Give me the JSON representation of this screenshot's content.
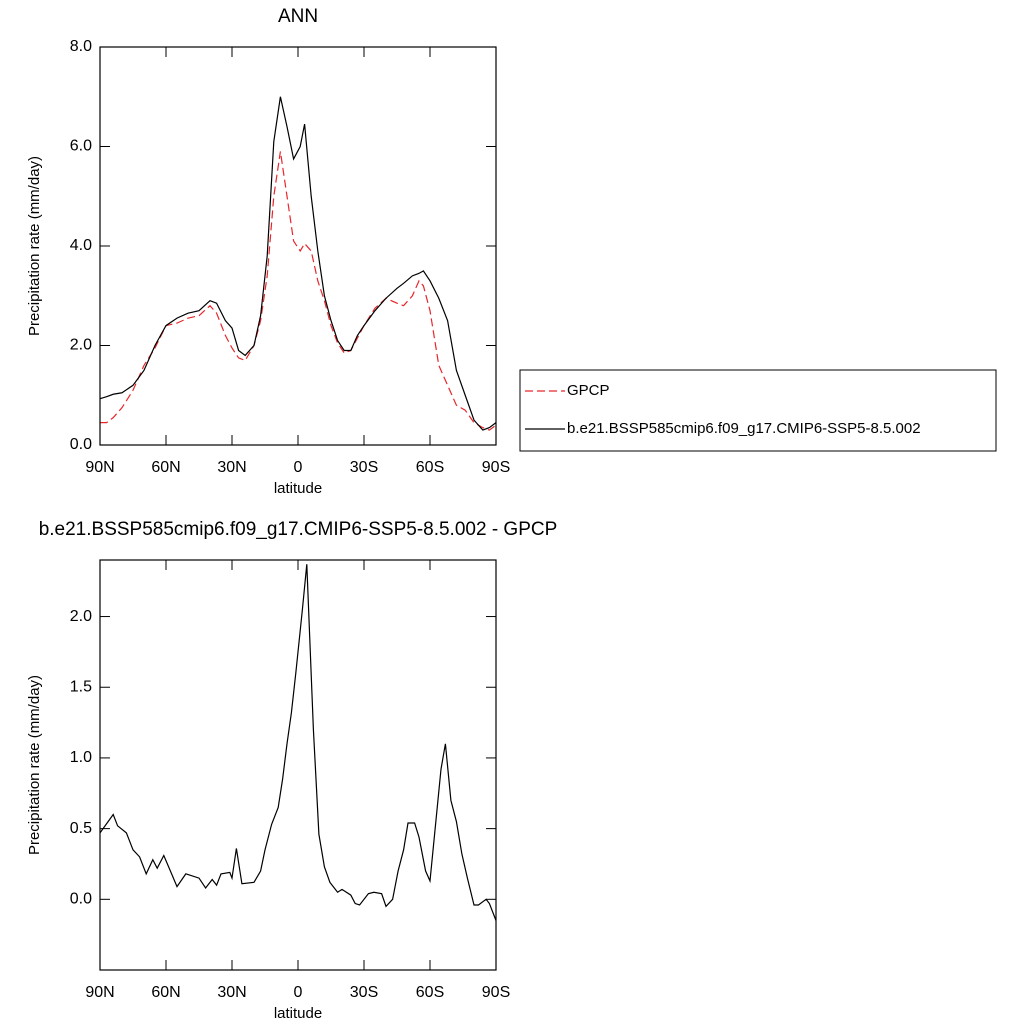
{
  "chart_data": [
    {
      "type": "line",
      "title": "ANN",
      "x_label": "latitude",
      "y_label": "Precipitation rate (mm/day)",
      "x": [
        90,
        87,
        84,
        80,
        75,
        70,
        65,
        60,
        55,
        50,
        45,
        40,
        37,
        33,
        30,
        27,
        24,
        20,
        17,
        14,
        11,
        8,
        5,
        2,
        -1,
        -3,
        -6,
        -9,
        -12,
        -15,
        -18,
        -21,
        -24,
        -27,
        -30,
        -35,
        -40,
        -45,
        -48,
        -52,
        -55,
        -57,
        -60,
        -64,
        -68,
        -72,
        -76,
        -80,
        -84,
        -87,
        -90
      ],
      "series": [
        {
          "name": "GPCP",
          "color": "#e8262b",
          "line_style": "dashed",
          "values": [
            0.45,
            0.45,
            0.55,
            0.75,
            1.1,
            1.6,
            1.95,
            2.4,
            2.45,
            2.55,
            2.6,
            2.8,
            2.65,
            2.2,
            1.95,
            1.75,
            1.7,
            2.0,
            2.5,
            3.4,
            5.0,
            5.9,
            5.0,
            4.1,
            3.9,
            4.05,
            3.9,
            3.3,
            2.9,
            2.4,
            2.05,
            1.85,
            1.9,
            2.15,
            2.4,
            2.75,
            2.95,
            2.85,
            2.8,
            3.0,
            3.3,
            3.2,
            2.7,
            1.6,
            1.2,
            0.8,
            0.7,
            0.45,
            0.35,
            0.3,
            0.4
          ]
        },
        {
          "name": "b.e21.BSSP585cmip6.f09_g17.CMIP6-SSP5-8.5.002",
          "color": "#000000",
          "line_style": "solid",
          "values": [
            0.93,
            0.97,
            1.02,
            1.05,
            1.2,
            1.5,
            2.0,
            2.4,
            2.55,
            2.65,
            2.7,
            2.9,
            2.85,
            2.5,
            2.35,
            1.9,
            1.8,
            2.0,
            2.6,
            3.8,
            6.1,
            7.0,
            6.4,
            5.75,
            6.0,
            6.45,
            5.0,
            3.9,
            3.0,
            2.5,
            2.1,
            1.9,
            1.9,
            2.2,
            2.4,
            2.7,
            2.95,
            3.15,
            3.25,
            3.4,
            3.45,
            3.5,
            3.3,
            2.95,
            2.5,
            1.5,
            1.0,
            0.5,
            0.3,
            0.35,
            0.45
          ]
        }
      ],
      "xlim": [
        90,
        -90
      ],
      "xticks": [
        {
          "value": 90,
          "label": "90N"
        },
        {
          "value": 60,
          "label": "60N"
        },
        {
          "value": 30,
          "label": "30N"
        },
        0,
        {
          "value": -30,
          "label": "30S"
        },
        {
          "value": -60,
          "label": "60S"
        },
        {
          "value": -90,
          "label": "90S"
        }
      ],
      "ylim": [
        0,
        8
      ],
      "yticks": [
        {
          "value": 0,
          "label": "0.0"
        },
        {
          "value": 2,
          "label": "2.0"
        },
        {
          "value": 4,
          "label": "4.0"
        },
        {
          "value": 6,
          "label": "6.0"
        },
        {
          "value": 8,
          "label": "8.0"
        }
      ],
      "legend": "right"
    },
    {
      "type": "line",
      "title": "b.e21.BSSP585cmip6.f09_g17.CMIP6-SSP5-8.5.002 - GPCP",
      "x_label": "latitude",
      "y_label": "Precipitation rate (mm/day)",
      "x": [
        90,
        84,
        82,
        78,
        75,
        72,
        69,
        66,
        64,
        61,
        58,
        55,
        51,
        45,
        42,
        39,
        37,
        35,
        31,
        30,
        28,
        25.5,
        20,
        17,
        15,
        12,
        9,
        7,
        5,
        3,
        1,
        -2,
        -4,
        -7,
        -9.5,
        -12,
        -14.5,
        -18,
        -20,
        -24,
        -26,
        -28,
        -32,
        -34.5,
        -38,
        -40,
        -43,
        -45.5,
        -48,
        -50,
        -53,
        -55,
        -58,
        -60,
        -65,
        -67,
        -69.5,
        -72,
        -74.5,
        -77,
        -80,
        -82,
        -85.5,
        -87,
        -90
      ],
      "color": "#000000",
      "values": [
        0.47,
        0.6,
        0.52,
        0.47,
        0.35,
        0.3,
        0.18,
        0.28,
        0.22,
        0.31,
        0.2,
        0.09,
        0.18,
        0.15,
        0.08,
        0.14,
        0.1,
        0.18,
        0.19,
        0.15,
        0.36,
        0.11,
        0.12,
        0.2,
        0.35,
        0.53,
        0.65,
        0.85,
        1.1,
        1.32,
        1.6,
        2.05,
        2.37,
        1.2,
        0.46,
        0.23,
        0.12,
        0.05,
        0.07,
        0.03,
        -0.03,
        -0.04,
        0.04,
        0.05,
        0.04,
        -0.05,
        0.0,
        0.2,
        0.35,
        0.54,
        0.54,
        0.44,
        0.2,
        0.13,
        0.92,
        1.1,
        0.7,
        0.55,
        0.32,
        0.15,
        -0.04,
        -0.04,
        0.0,
        -0.03,
        -0.15
      ],
      "xlim": [
        90,
        -90
      ],
      "xticks": [
        {
          "value": 90,
          "label": "90N"
        },
        {
          "value": 60,
          "label": "60N"
        },
        {
          "value": 30,
          "label": "30N"
        },
        0,
        {
          "value": -30,
          "label": "30S"
        },
        {
          "value": -60,
          "label": "60S"
        },
        {
          "value": -90,
          "label": "90S"
        }
      ],
      "ylim": [
        -0.5,
        2.4
      ],
      "yticks": [
        {
          "value": 0,
          "label": "0.0"
        },
        {
          "value": 0.5,
          "label": "0.5"
        },
        {
          "value": 1,
          "label": "1.0"
        },
        {
          "value": 1.5,
          "label": "1.5"
        },
        {
          "value": 2,
          "label": "2.0"
        }
      ]
    }
  ]
}
